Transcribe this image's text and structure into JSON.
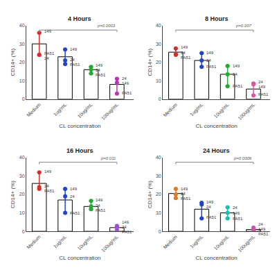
{
  "chart_data": [
    {
      "type": "bar",
      "title": "4 Hours",
      "xlabel": "CL concentration",
      "ylabel": "CD14+ (%)",
      "categories": [
        "Medium",
        "1ug/mL",
        "10ug/mL",
        "100ug/mL"
      ],
      "values": [
        30,
        23,
        16,
        8
      ],
      "color": "#ffffff",
      "ylim": [
        0,
        40
      ],
      "yticks": [
        0,
        10,
        20,
        30,
        40
      ],
      "grid": false,
      "points": [
        {
          "color": "#d43030",
          "values": [
            36,
            24,
            24
          ],
          "labels": [
            "149",
            "PA51",
            "24"
          ]
        },
        {
          "color": "#2244cc",
          "values": [
            27,
            21,
            19
          ],
          "labels": [
            "149",
            "24",
            "PA51"
          ]
        },
        {
          "color": "#22aa33",
          "values": [
            17.5,
            16,
            14
          ],
          "labels": [
            "149",
            "24",
            "PA51"
          ]
        },
        {
          "color": "#bb33bb",
          "values": [
            11,
            9,
            3
          ],
          "labels": [
            "24",
            "149",
            "PA51"
          ]
        }
      ],
      "bracket": {
        "y": 37.5,
        "color": "#888888",
        "label": "p=0.0003"
      }
    },
    {
      "type": "bar",
      "title": "8 Hours",
      "xlabel": "CL concentration",
      "ylabel": "CD14+ (%)",
      "categories": [
        "Medium",
        "1ug/mL",
        "10ug/mL",
        "100ug/mL"
      ],
      "values": [
        25.5,
        21,
        13.5,
        5.5
      ],
      "color": "#ffffff",
      "ylim": [
        0,
        40
      ],
      "yticks": [
        0,
        10,
        20,
        30,
        40
      ],
      "grid": false,
      "points": [
        {
          "color": "#d43030",
          "values": [
            27.5,
            24.5,
            24
          ],
          "labels": [
            "149",
            "24",
            "PA51"
          ]
        },
        {
          "color": "#2244cc",
          "values": [
            25,
            21,
            17.5
          ],
          "labels": [
            "149",
            "24",
            "PA51"
          ]
        },
        {
          "color": "#22aa33",
          "values": [
            18,
            13.5,
            7
          ],
          "labels": [
            "149",
            "24",
            "PA51"
          ]
        },
        {
          "color": "#dd5599",
          "values": [
            8.5,
            8,
            2
          ],
          "labels": [
            "24",
            "149",
            "PA51"
          ]
        }
      ],
      "bracket": {
        "y": 37.5,
        "color": "#888888",
        "label": "p=0.007"
      }
    },
    {
      "type": "bar",
      "title": "16 Hours",
      "xlabel": "CL concentration",
      "ylabel": "CD14+ (%)",
      "categories": [
        "Medium",
        "1ug/mL",
        "10ug/mL",
        "100ug/mL"
      ],
      "values": [
        26,
        17,
        13.5,
        2
      ],
      "color": "#ffffff",
      "ylim": [
        0,
        40
      ],
      "yticks": [
        0,
        10,
        20,
        30,
        40
      ],
      "grid": false,
      "points": [
        {
          "color": "#d43030",
          "values": [
            32,
            24,
            23
          ],
          "labels": [
            "149",
            "24",
            "PA51"
          ]
        },
        {
          "color": "#2244cc",
          "values": [
            23,
            19,
            10
          ],
          "labels": [
            "149",
            "24",
            "PA51"
          ]
        },
        {
          "color": "#22aa33",
          "values": [
            16.5,
            13.5,
            12
          ],
          "labels": [
            "149",
            "24",
            "PA51"
          ]
        },
        {
          "color": "#9955cc",
          "values": [
            3,
            2.5,
            1
          ],
          "labels": [
            "149",
            "24",
            "PA51"
          ]
        }
      ],
      "bracket": {
        "y": 37.5,
        "color": "#888888",
        "label": "p=0.011"
      }
    },
    {
      "type": "bar",
      "title": "24 Hours",
      "xlabel": "CL concentration",
      "ylabel": "CD14+ (%)",
      "categories": [
        "Medium",
        "1ug/mL",
        "10ug/mL",
        "100ug/mL"
      ],
      "values": [
        20.5,
        12,
        10,
        1
      ],
      "color": "#ffffff",
      "ylim": [
        0,
        40
      ],
      "yticks": [
        0,
        10,
        20,
        30,
        40
      ],
      "grid": false,
      "points": [
        {
          "color": "#e07820",
          "values": [
            23,
            20,
            18
          ],
          "labels": [
            "149",
            "24",
            "PA51"
          ]
        },
        {
          "color": "#2244cc",
          "values": [
            15.5,
            14.5,
            7
          ],
          "labels": [
            "149",
            "24",
            "PA51"
          ]
        },
        {
          "color": "#22bbaa",
          "values": [
            13,
            10,
            7
          ],
          "labels": [
            "24",
            "149",
            "PA51"
          ]
        },
        {
          "color": "#cc55aa",
          "values": [
            2,
            1.5,
            0.5
          ],
          "labels": [
            "24",
            "149",
            "PA51"
          ]
        }
      ],
      "bracket": {
        "y": 37.5,
        "color": "#888888",
        "label": "p=0.0006"
      }
    }
  ]
}
